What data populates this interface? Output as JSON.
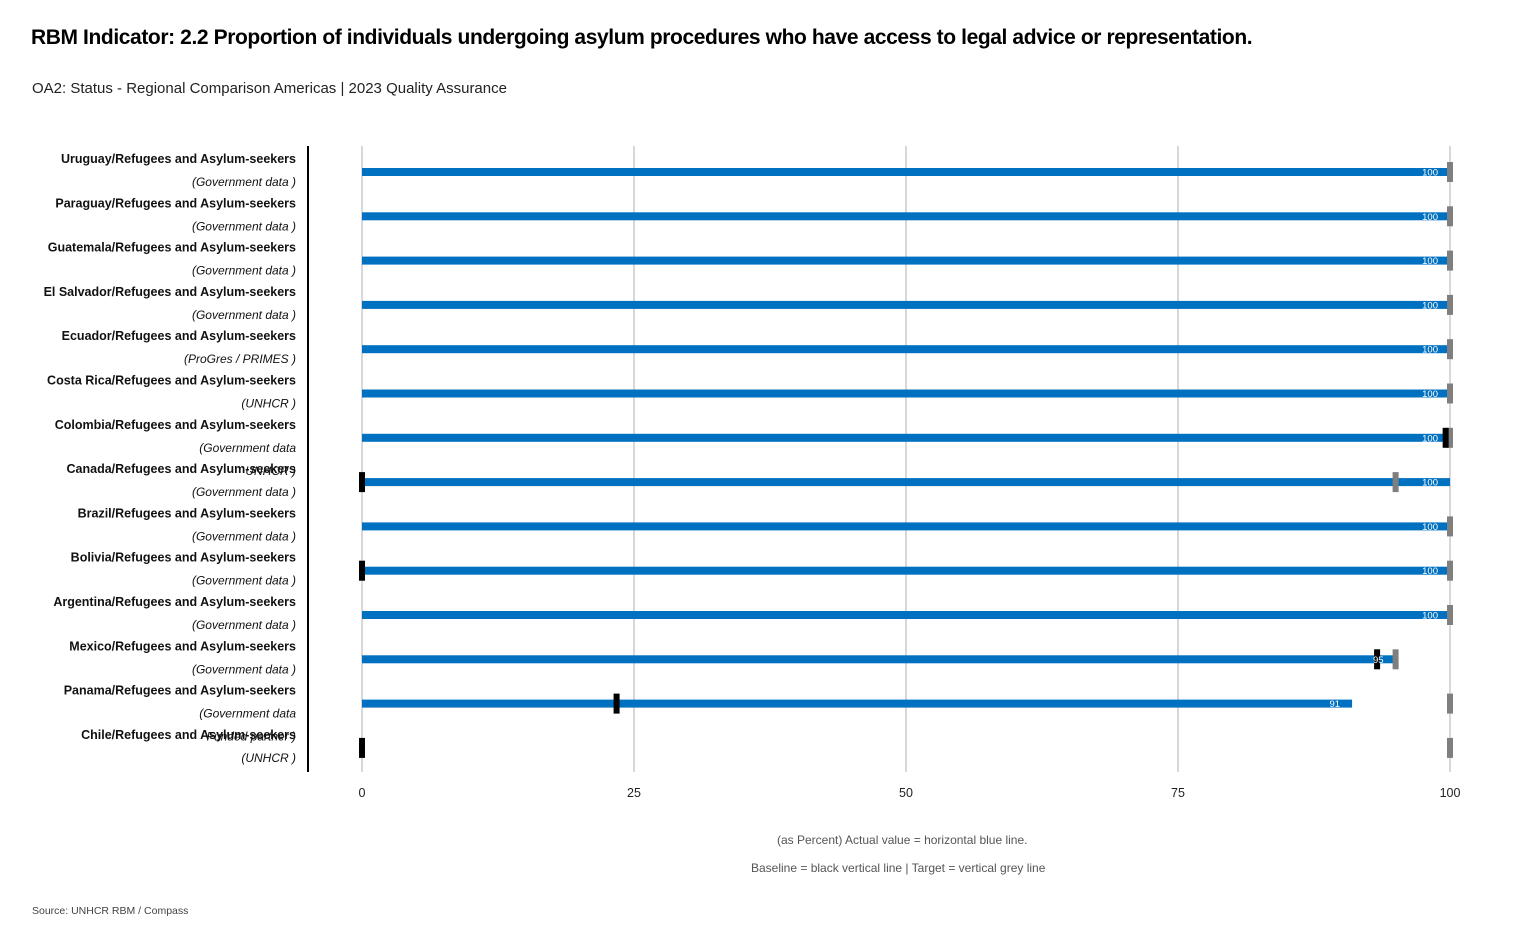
{
  "title": "RBM Indicator: 2.2 Proportion of individuals undergoing asylum procedures who have access to legal advice or representation.",
  "subtitle": "OA2: Status - Regional Comparison Americas | 2023 Quality Assurance",
  "notes": {
    "line1": "(as Percent) Actual value = horizontal blue line.",
    "line2": "Baseline = black vertical line | Target = vertical grey line"
  },
  "source": "Source:  UNHCR RBM  / Compass",
  "colors": {
    "actual": "#0070c0",
    "baseline": "#000000",
    "target": "#7f7f7f",
    "grid": "#cccccc"
  },
  "chart_data": {
    "type": "bar",
    "orientation": "horizontal",
    "xlim": [
      0,
      100
    ],
    "xticks": [
      0,
      25,
      50,
      75,
      100
    ],
    "grid": true,
    "categories": [
      {
        "name": "Uruguay/Refugees and Asylum-seekers",
        "source": "(Government data )",
        "actual": 100,
        "baseline": null,
        "target": 100,
        "label": "100"
      },
      {
        "name": "Paraguay/Refugees and Asylum-seekers",
        "source": "(Government data )",
        "actual": 100,
        "baseline": null,
        "target": 100,
        "label": "100"
      },
      {
        "name": "Guatemala/Refugees and Asylum-seekers",
        "source": "(Government data )",
        "actual": 100,
        "baseline": null,
        "target": 100,
        "label": "100"
      },
      {
        "name": "El Salvador/Refugees and Asylum-seekers",
        "source": "(Government data )",
        "actual": 100,
        "baseline": null,
        "target": 100,
        "label": "100"
      },
      {
        "name": "Ecuador/Refugees and Asylum-seekers",
        "source": "(ProGres / PRIMES )",
        "actual": 100,
        "baseline": null,
        "target": 100,
        "label": "100"
      },
      {
        "name": "Costa Rica/Refugees and Asylum-seekers",
        "source": "(UNHCR )",
        "actual": 100,
        "baseline": null,
        "target": 100,
        "label": "100"
      },
      {
        "name": "Colombia/Refugees and Asylum-seekers",
        "source": "(Government data",
        "source2": "UNHCR )",
        "actual": 100,
        "baseline": 99.6,
        "target": 100,
        "label": "100"
      },
      {
        "name": "Canada/Refugees and Asylum-seekers",
        "source": "(Government data )",
        "actual": 100,
        "baseline": 0,
        "target": 95,
        "label": "100"
      },
      {
        "name": "Brazil/Refugees and Asylum-seekers",
        "source": "(Government data )",
        "actual": 100,
        "baseline": null,
        "target": 100,
        "label": "100"
      },
      {
        "name": "Bolivia/Refugees and Asylum-seekers",
        "source": "(Government data )",
        "actual": 100,
        "baseline": 0,
        "target": 100,
        "label": "100"
      },
      {
        "name": "Argentina/Refugees and Asylum-seekers",
        "source": "(Government data )",
        "actual": 100,
        "baseline": null,
        "target": 100,
        "label": "100"
      },
      {
        "name": "Mexico/Refugees and Asylum-seekers",
        "source": "(Government data )",
        "actual": 95,
        "baseline": 93.3,
        "target": 95,
        "label": "95"
      },
      {
        "name": "Panama/Refugees and Asylum-seekers",
        "source": "(Government data",
        "source2": "Funded partner )",
        "actual": 91,
        "baseline": 23.4,
        "target": 100,
        "label": "91"
      },
      {
        "name": "Chile/Refugees and Asylum-seekers",
        "source": "(UNHCR )",
        "actual": null,
        "baseline": 0,
        "target": 100,
        "label": ""
      }
    ]
  }
}
